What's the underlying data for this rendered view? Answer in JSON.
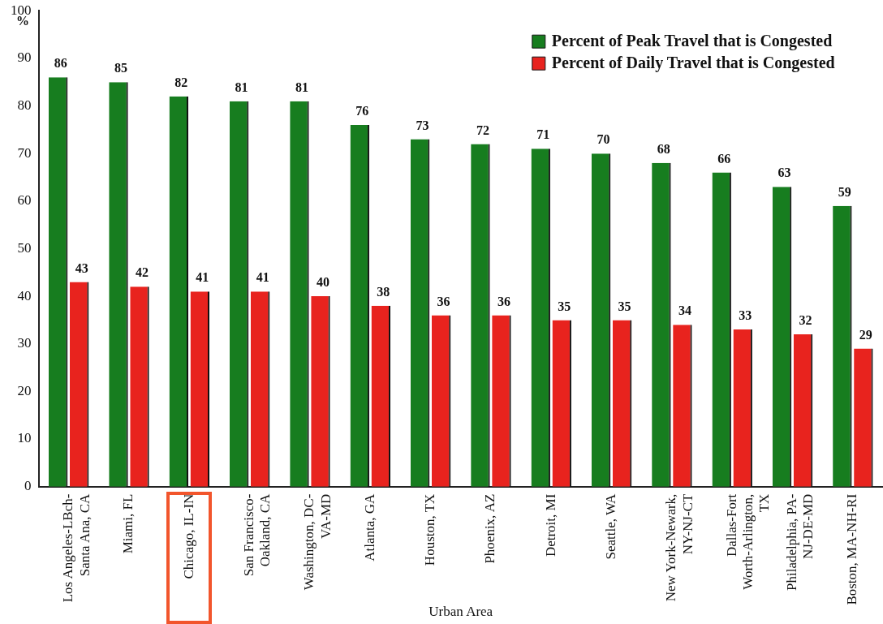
{
  "chart_data": {
    "type": "bar",
    "xlabel": "Urban Area",
    "ylabel": "%",
    "categories": [
      "Los Angeles-LBch-Santa Ana, CA",
      "Miami, FL",
      "Chicago, IL-IN",
      "San Francisco-Oakland, CA",
      "Washington, DC-VA-MD",
      "Atlanta, GA",
      "Houston, TX",
      "Phoenix, AZ",
      "Detroit, MI",
      "Seattle, WA",
      "New York-Newark, NY-NJ-CT",
      "Dallas-Fort Worth-Arlington, TX",
      "Philadelphia, PA-NJ-DE-MD",
      "Boston, MA-NH-RI"
    ],
    "series": [
      {
        "name": "Percent of Peak Travel that is Congested",
        "color": "#177d1f",
        "values": [
          86,
          85,
          82,
          81,
          81,
          76,
          73,
          72,
          71,
          70,
          68,
          66,
          63,
          59
        ]
      },
      {
        "name": "Percent of Daily Travel that is Congested",
        "color": "#e8231e",
        "values": [
          43,
          42,
          41,
          41,
          40,
          38,
          36,
          36,
          35,
          35,
          34,
          33,
          32,
          29
        ]
      }
    ],
    "ylim": [
      0,
      100
    ],
    "yticks": [
      0,
      10,
      20,
      30,
      40,
      50,
      60,
      70,
      80,
      90,
      100
    ],
    "grid": false,
    "legend": "top right",
    "data_labels": true
  }
}
